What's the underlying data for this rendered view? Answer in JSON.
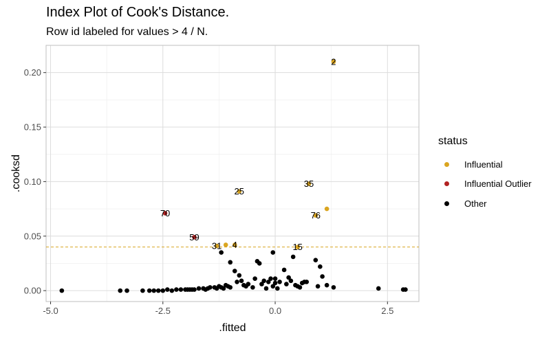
{
  "chart_data": {
    "type": "scatter",
    "title": "Index Plot of Cook's Distance.",
    "subtitle": "Row id labeled for values > 4 / N.",
    "xlabel": ".fitted",
    "ylabel": ".cooksd",
    "xlim": [
      -5.1,
      3.2
    ],
    "ylim": [
      -0.01,
      0.225
    ],
    "xticks": [
      -5.0,
      -2.5,
      0.0,
      2.5
    ],
    "xtick_labels": [
      "-5.0",
      "-2.5",
      "0.0",
      "2.5"
    ],
    "yticks": [
      0.0,
      0.05,
      0.1,
      0.15,
      0.2
    ],
    "ytick_labels": [
      "0.00",
      "0.05",
      "0.10",
      "0.15",
      "0.20"
    ],
    "grid": true,
    "threshold": 0.04,
    "legend": {
      "title": "status",
      "position": "right",
      "entries": [
        {
          "name": "Influential",
          "color": "#DAA520"
        },
        {
          "name": "Influential Outlier",
          "color": "#B22222"
        },
        {
          "name": "Other",
          "color": "#000000"
        }
      ]
    },
    "series": [
      {
        "name": "Influential",
        "color": "#DAA520",
        "points": [
          {
            "x": 1.3,
            "y": 0.21,
            "label": "2"
          },
          {
            "x": 0.75,
            "y": 0.098,
            "label": "35"
          },
          {
            "x": -0.8,
            "y": 0.091,
            "label": "25"
          },
          {
            "x": 1.15,
            "y": 0.075,
            "label": ""
          },
          {
            "x": 0.9,
            "y": 0.069,
            "label": "76"
          },
          {
            "x": -1.1,
            "y": 0.042,
            "label": ""
          },
          {
            "x": -0.9,
            "y": 0.042,
            "label": "4"
          },
          {
            "x": -1.3,
            "y": 0.041,
            "label": "31"
          },
          {
            "x": 0.5,
            "y": 0.04,
            "label": "15"
          }
        ]
      },
      {
        "name": "Influential Outlier",
        "color": "#B22222",
        "points": [
          {
            "x": -2.45,
            "y": 0.071,
            "label": "70"
          },
          {
            "x": -1.8,
            "y": 0.049,
            "label": "59"
          }
        ]
      },
      {
        "name": "Other",
        "color": "#000000",
        "points": [
          {
            "x": -4.75,
            "y": 0.0
          },
          {
            "x": -3.45,
            "y": 0.0
          },
          {
            "x": -3.3,
            "y": 0.0
          },
          {
            "x": -2.95,
            "y": 0.0
          },
          {
            "x": -2.8,
            "y": 0.0
          },
          {
            "x": -2.7,
            "y": 0.0
          },
          {
            "x": -2.6,
            "y": 0.0
          },
          {
            "x": -2.5,
            "y": 0.0
          },
          {
            "x": -2.4,
            "y": 0.001
          },
          {
            "x": -2.3,
            "y": 0.0
          },
          {
            "x": -2.2,
            "y": 0.001
          },
          {
            "x": -2.1,
            "y": 0.001
          },
          {
            "x": -2.0,
            "y": 0.001
          },
          {
            "x": -1.95,
            "y": 0.001
          },
          {
            "x": -1.9,
            "y": 0.001
          },
          {
            "x": -1.85,
            "y": 0.001
          },
          {
            "x": -1.8,
            "y": 0.001
          },
          {
            "x": -1.7,
            "y": 0.002
          },
          {
            "x": -1.6,
            "y": 0.002
          },
          {
            "x": -1.55,
            "y": 0.001
          },
          {
            "x": -1.5,
            "y": 0.002
          },
          {
            "x": -1.45,
            "y": 0.003
          },
          {
            "x": -1.35,
            "y": 0.003
          },
          {
            "x": -1.3,
            "y": 0.002
          },
          {
            "x": -1.25,
            "y": 0.004
          },
          {
            "x": -1.2,
            "y": 0.003
          },
          {
            "x": -1.15,
            "y": 0.002
          },
          {
            "x": -1.1,
            "y": 0.005
          },
          {
            "x": -1.05,
            "y": 0.004
          },
          {
            "x": -1.0,
            "y": 0.003
          },
          {
            "x": -1.2,
            "y": 0.035
          },
          {
            "x": -1.0,
            "y": 0.026
          },
          {
            "x": -0.9,
            "y": 0.018
          },
          {
            "x": -0.85,
            "y": 0.008
          },
          {
            "x": -0.8,
            "y": 0.014
          },
          {
            "x": -0.75,
            "y": 0.009
          },
          {
            "x": -0.7,
            "y": 0.005
          },
          {
            "x": -0.65,
            "y": 0.004
          },
          {
            "x": -0.6,
            "y": 0.006
          },
          {
            "x": -0.5,
            "y": 0.003
          },
          {
            "x": -0.45,
            "y": 0.011
          },
          {
            "x": -0.4,
            "y": 0.027
          },
          {
            "x": -0.35,
            "y": 0.025
          },
          {
            "x": -0.3,
            "y": 0.006
          },
          {
            "x": -0.25,
            "y": 0.009
          },
          {
            "x": -0.2,
            "y": 0.002
          },
          {
            "x": -0.15,
            "y": 0.008
          },
          {
            "x": -0.1,
            "y": 0.011
          },
          {
            "x": -0.05,
            "y": 0.004
          },
          {
            "x": 0.0,
            "y": 0.007
          },
          {
            "x": -0.05,
            "y": 0.035
          },
          {
            "x": 0.0,
            "y": 0.011
          },
          {
            "x": 0.05,
            "y": 0.002
          },
          {
            "x": 0.1,
            "y": 0.008
          },
          {
            "x": 0.2,
            "y": 0.019
          },
          {
            "x": 0.25,
            "y": 0.006
          },
          {
            "x": 0.3,
            "y": 0.012
          },
          {
            "x": 0.35,
            "y": 0.009
          },
          {
            "x": 0.4,
            "y": 0.031
          },
          {
            "x": 0.45,
            "y": 0.005
          },
          {
            "x": 0.5,
            "y": 0.004
          },
          {
            "x": 0.55,
            "y": 0.003
          },
          {
            "x": 0.6,
            "y": 0.007
          },
          {
            "x": 0.65,
            "y": 0.008
          },
          {
            "x": 0.7,
            "y": 0.008
          },
          {
            "x": 0.9,
            "y": 0.028
          },
          {
            "x": 0.95,
            "y": 0.004
          },
          {
            "x": 1.0,
            "y": 0.022
          },
          {
            "x": 1.05,
            "y": 0.013
          },
          {
            "x": 1.15,
            "y": 0.005
          },
          {
            "x": 1.3,
            "y": 0.003
          },
          {
            "x": 2.3,
            "y": 0.002
          },
          {
            "x": 2.85,
            "y": 0.001
          },
          {
            "x": 2.9,
            "y": 0.001
          }
        ]
      }
    ]
  }
}
